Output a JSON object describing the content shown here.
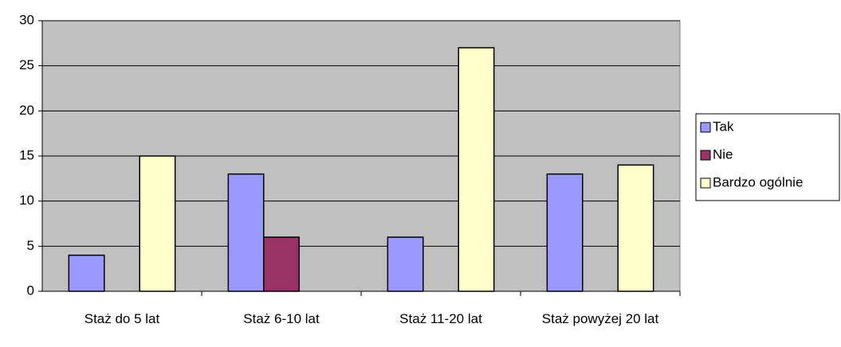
{
  "chart_data": {
    "type": "bar",
    "categories": [
      "Staż do 5 lat",
      "Staż 6-10 lat",
      "Staż 11-20 lat",
      "Staż powyżej 20 lat"
    ],
    "series": [
      {
        "name": "Tak",
        "color": "#9999ff",
        "values": [
          4,
          13,
          6,
          13
        ]
      },
      {
        "name": "Nie",
        "color": "#993366",
        "values": [
          0,
          6,
          0,
          0
        ]
      },
      {
        "name": "Bardzo ogólnie",
        "color": "#ffffcc",
        "values": [
          15,
          0,
          27,
          14
        ]
      }
    ],
    "ylim": [
      0,
      30
    ],
    "yticks": [
      0,
      5,
      10,
      15,
      20,
      25,
      30
    ],
    "grid": true,
    "legend": "right"
  }
}
